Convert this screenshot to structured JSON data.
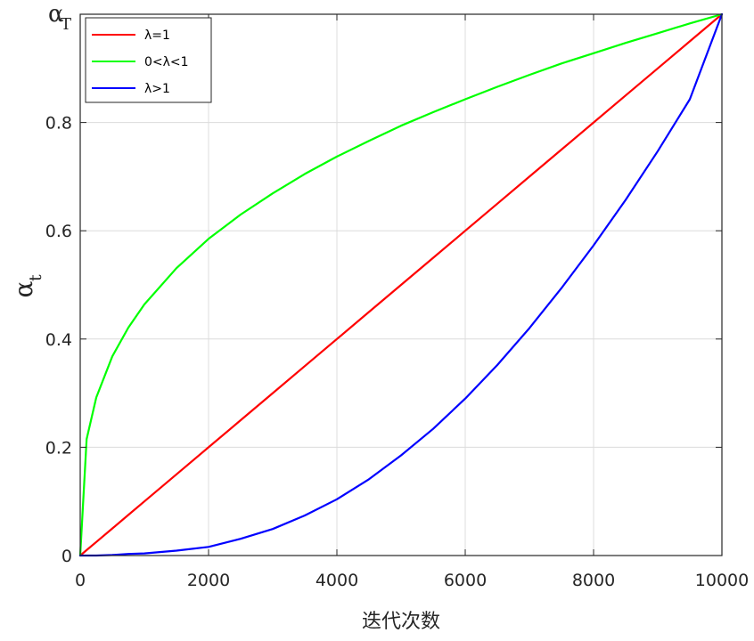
{
  "chart_data": {
    "type": "line",
    "xlabel": "迭代次数",
    "ylabel": {
      "symbol": "α",
      "subscript": "t"
    },
    "xlim": [
      0,
      10000
    ],
    "ylim": [
      0,
      1
    ],
    "grid": true,
    "legend_position": "top-left",
    "x_ticks": [
      0,
      2000,
      4000,
      6000,
      8000,
      10000
    ],
    "x_tick_labels": [
      "0",
      "2000",
      "4000",
      "6000",
      "8000",
      "10000"
    ],
    "y_ticks": [
      0,
      0.2,
      0.4,
      0.6,
      0.8
    ],
    "y_tick_labels": [
      "0",
      "0.2",
      "0.4",
      "0.6",
      "0.8"
    ],
    "y_top_label": {
      "value": 1,
      "symbol": "α",
      "subscript": "T"
    },
    "x": [
      0,
      100,
      250,
      500,
      750,
      1000,
      1500,
      2000,
      2500,
      3000,
      3500,
      4000,
      4500,
      5000,
      5500,
      6000,
      6500,
      7000,
      7500,
      8000,
      8500,
      9000,
      9500,
      10000
    ],
    "series": [
      {
        "name": "λ=1",
        "color": "#ff0000",
        "values": [
          0,
          0.01,
          0.025,
          0.05,
          0.075,
          0.1,
          0.15,
          0.2,
          0.25,
          0.3,
          0.35,
          0.4,
          0.45,
          0.5,
          0.55,
          0.6,
          0.65,
          0.7,
          0.75,
          0.8,
          0.85,
          0.9,
          0.95,
          1
        ]
      },
      {
        "name": "0<λ<1",
        "color": "#00ff00",
        "values": [
          0,
          0.215,
          0.292,
          0.368,
          0.421,
          0.464,
          0.531,
          0.585,
          0.63,
          0.669,
          0.705,
          0.737,
          0.766,
          0.794,
          0.819,
          0.843,
          0.866,
          0.888,
          0.909,
          0.928,
          0.947,
          0.965,
          0.983,
          1
        ]
      },
      {
        "name": "λ>1",
        "color": "#0000ff",
        "values": [
          0,
          0,
          0,
          0.001,
          0.003,
          0.004,
          0.009,
          0.016,
          0.031,
          0.049,
          0.074,
          0.104,
          0.141,
          0.185,
          0.234,
          0.29,
          0.352,
          0.42,
          0.494,
          0.573,
          0.657,
          0.747,
          0.843,
          1
        ]
      }
    ]
  }
}
